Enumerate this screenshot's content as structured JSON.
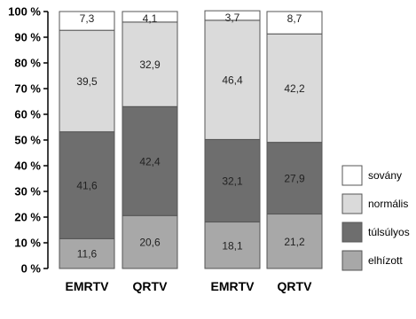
{
  "chart_data": {
    "type": "bar",
    "stacked": true,
    "categories": [
      "EMRTV",
      "QRTV",
      "EMRTV",
      "QRTV"
    ],
    "series": [
      {
        "name": "elhízott",
        "values": [
          11.6,
          20.6,
          18.1,
          21.2
        ],
        "color": "#a8a8a8"
      },
      {
        "name": "túlsúlyos",
        "values": [
          41.6,
          42.4,
          32.1,
          27.9
        ],
        "color": "#6e6e6e"
      },
      {
        "name": "normális",
        "values": [
          39.5,
          32.9,
          46.4,
          42.2
        ],
        "color": "#dadada"
      },
      {
        "name": "sovány",
        "values": [
          7.3,
          4.1,
          3.7,
          8.7
        ],
        "color": "#ffffff"
      }
    ],
    "legend_order": [
      "sovány",
      "normális",
      "túlsúlyos",
      "elhízott"
    ],
    "legend_position": "right",
    "yticks": [
      "0 %",
      "10 %",
      "20 %",
      "30 %",
      "40 %",
      "50 %",
      "60 %",
      "70 %",
      "80 %",
      "90 %",
      "100 %"
    ],
    "ylim": [
      0,
      100
    ],
    "grid": false
  }
}
